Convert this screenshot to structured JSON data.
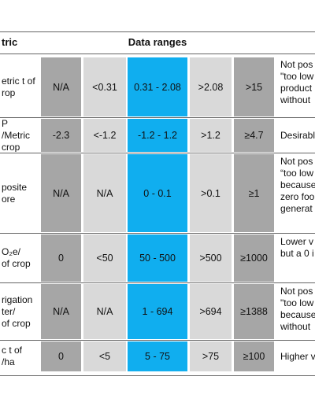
{
  "header": {
    "left": "tric",
    "center": "Data ranges"
  },
  "rows": [
    {
      "label": [
        "etric t of",
        "rop"
      ],
      "values": [
        "N/A",
        "<0.31",
        "0.31 - 2.08",
        ">2.08",
        ">15"
      ],
      "note": [
        "Not pos",
        "\"too low",
        "product",
        "without"
      ]
    },
    {
      "label": [
        "P",
        "/Metric",
        "crop"
      ],
      "values": [
        "-2.3",
        "<-1.2",
        "-1.2 - 1.2",
        ">1.2",
        "≥4.7"
      ],
      "note": [
        "Desirabl"
      ]
    },
    {
      "label": [
        "posite",
        "ore"
      ],
      "values": [
        "N/A",
        "N/A",
        "0 - 0.1",
        ">0.1",
        "≥1"
      ],
      "note": [
        "Not pos",
        "“too low",
        "because",
        "zero foo",
        "generat"
      ]
    },
    {
      "label": [
        "O₂e/",
        "of crop"
      ],
      "values": [
        "0",
        "<50",
        "50 - 500",
        ">500",
        "≥1000"
      ],
      "note": [
        "Lower v",
        "but a 0 i"
      ]
    },
    {
      "label": [
        "rigation",
        "ter/",
        "of crop"
      ],
      "values": [
        "N/A",
        "N/A",
        "1 - 694",
        ">694",
        "≥1388"
      ],
      "note": [
        "Not pos",
        "\"too low",
        "because",
        "without"
      ]
    },
    {
      "label": [
        "c t of",
        "/ha"
      ],
      "values": [
        "0",
        "<5",
        "5 - 75",
        ">75",
        "≥100"
      ],
      "note": [
        "Higher v"
      ]
    }
  ]
}
